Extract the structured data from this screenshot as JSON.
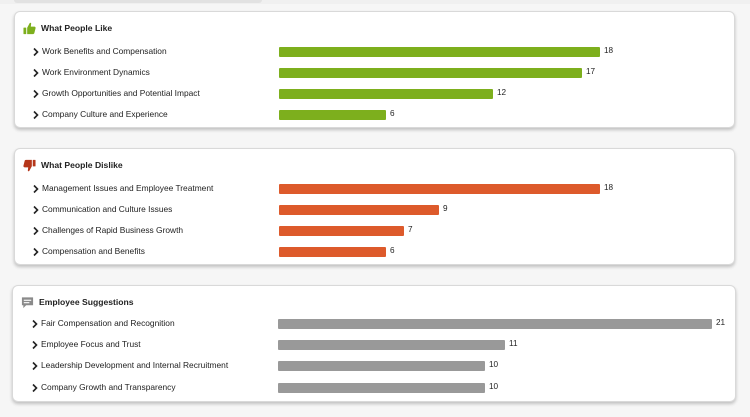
{
  "max_value": 21,
  "sections": [
    {
      "title": "What People Like",
      "icon": "thumbs-up-icon",
      "color": "#7daf1d",
      "items": [
        {
          "label": "Work Benefits and Compensation",
          "value": 18
        },
        {
          "label": "Work Environment Dynamics",
          "value": 17
        },
        {
          "label": "Growth Opportunities and Potential Impact",
          "value": 12
        },
        {
          "label": "Company Culture and Experience",
          "value": 6
        }
      ]
    },
    {
      "title": "What People Dislike",
      "icon": "thumbs-down-icon",
      "color": "#dd5a2b",
      "items": [
        {
          "label": "Management Issues and Employee Treatment",
          "value": 18
        },
        {
          "label": "Communication and Culture Issues",
          "value": 9
        },
        {
          "label": "Challenges of Rapid Business Growth",
          "value": 7
        },
        {
          "label": "Compensation and Benefits",
          "value": 6
        }
      ]
    },
    {
      "title": "Employee Suggestions",
      "icon": "speech-bubble-icon",
      "color": "#999999",
      "items": [
        {
          "label": "Fair Compensation and Recognition",
          "value": 21
        },
        {
          "label": "Employee Focus and Trust",
          "value": 11
        },
        {
          "label": "Leadership Development and Internal Recruitment",
          "value": 10
        },
        {
          "label": "Company Growth and Transparency",
          "value": 10
        }
      ]
    }
  ]
}
